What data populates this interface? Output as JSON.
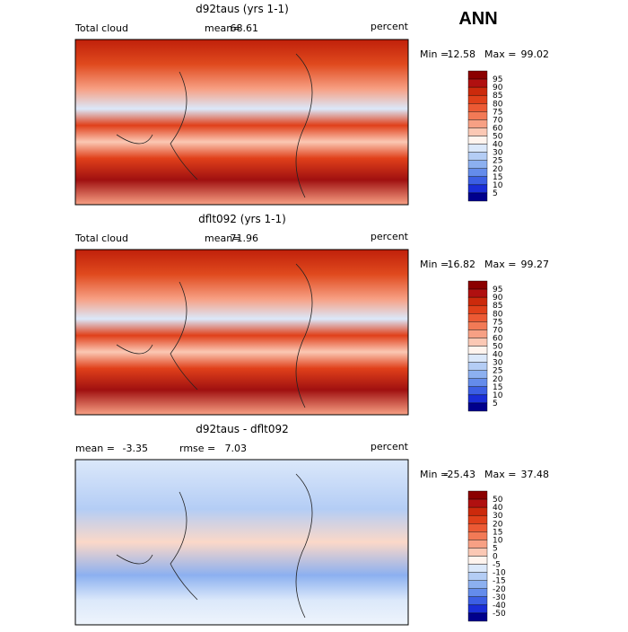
{
  "title": "ANN",
  "colorbar_colors": [
    "#8b0000",
    "#b01010",
    "#cc2a0c",
    "#e0401a",
    "#ec5a34",
    "#f27a56",
    "#f7a084",
    "#fbc8b4",
    "#fff4ee",
    "#dbe8fa",
    "#b4cdf5",
    "#8cb0f0",
    "#648ceb",
    "#3c5fe4",
    "#1a2ed8",
    "#00008c"
  ],
  "panels": [
    {
      "title": "d92taus (yrs 1-1)",
      "left": "Total cloud",
      "mean_label": "mean=",
      "mean": 68.61,
      "units": "percent",
      "min_label": "Min =",
      "min": 12.58,
      "max_label": "Max =",
      "max": 99.02,
      "levels": [
        95,
        90,
        85,
        80,
        75,
        70,
        60,
        50,
        40,
        30,
        25,
        20,
        15,
        10,
        5
      ]
    },
    {
      "title": "dflt092 (yrs 1-1)",
      "left": "Total cloud",
      "mean_label": "mean=",
      "mean": 71.96,
      "units": "percent",
      "min_label": "Min =",
      "min": 16.82,
      "max_label": "Max =",
      "max": 99.27,
      "levels": [
        95,
        90,
        85,
        80,
        75,
        70,
        60,
        50,
        40,
        30,
        25,
        20,
        15,
        10,
        5
      ]
    },
    {
      "title": "d92taus - dflt092",
      "left": "mean =",
      "mean_label": "rmse =",
      "mean": -3.35,
      "rmse": 7.03,
      "units": "percent",
      "min_label": "Min =",
      "min": -25.43,
      "max_label": "Max =",
      "max": 37.48,
      "levels": [
        50,
        40,
        30,
        20,
        15,
        10,
        5,
        0,
        -5,
        -10,
        -15,
        -20,
        -30,
        -40,
        -50
      ]
    }
  ]
}
